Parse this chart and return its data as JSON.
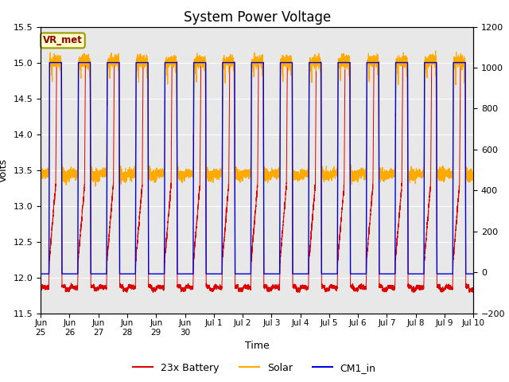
{
  "title": "System Power Voltage",
  "xlabel": "Time",
  "ylabel": "Volts",
  "ylim_left": [
    11.5,
    15.5
  ],
  "ylim_right": [
    -200,
    1200
  ],
  "yticks_left": [
    11.5,
    12.0,
    12.5,
    13.0,
    13.5,
    14.0,
    14.5,
    15.0,
    15.5
  ],
  "yticks_right": [
    -200,
    0,
    200,
    400,
    600,
    800,
    1000,
    1200
  ],
  "annotation_text": "VR_met",
  "annotation_fg": "#8B0000",
  "annotation_bg": "#ffffcc",
  "annotation_edge": "#999900",
  "background_color": "#e8e8e8",
  "line_colors": {
    "battery": "#dd0000",
    "solar": "#ffaa00",
    "cm1": "#0000dd"
  },
  "legend_labels": [
    "23x Battery",
    "Solar",
    "CM1_in"
  ],
  "title_fontsize": 12,
  "axis_label_fontsize": 9,
  "tick_fontsize": 8
}
